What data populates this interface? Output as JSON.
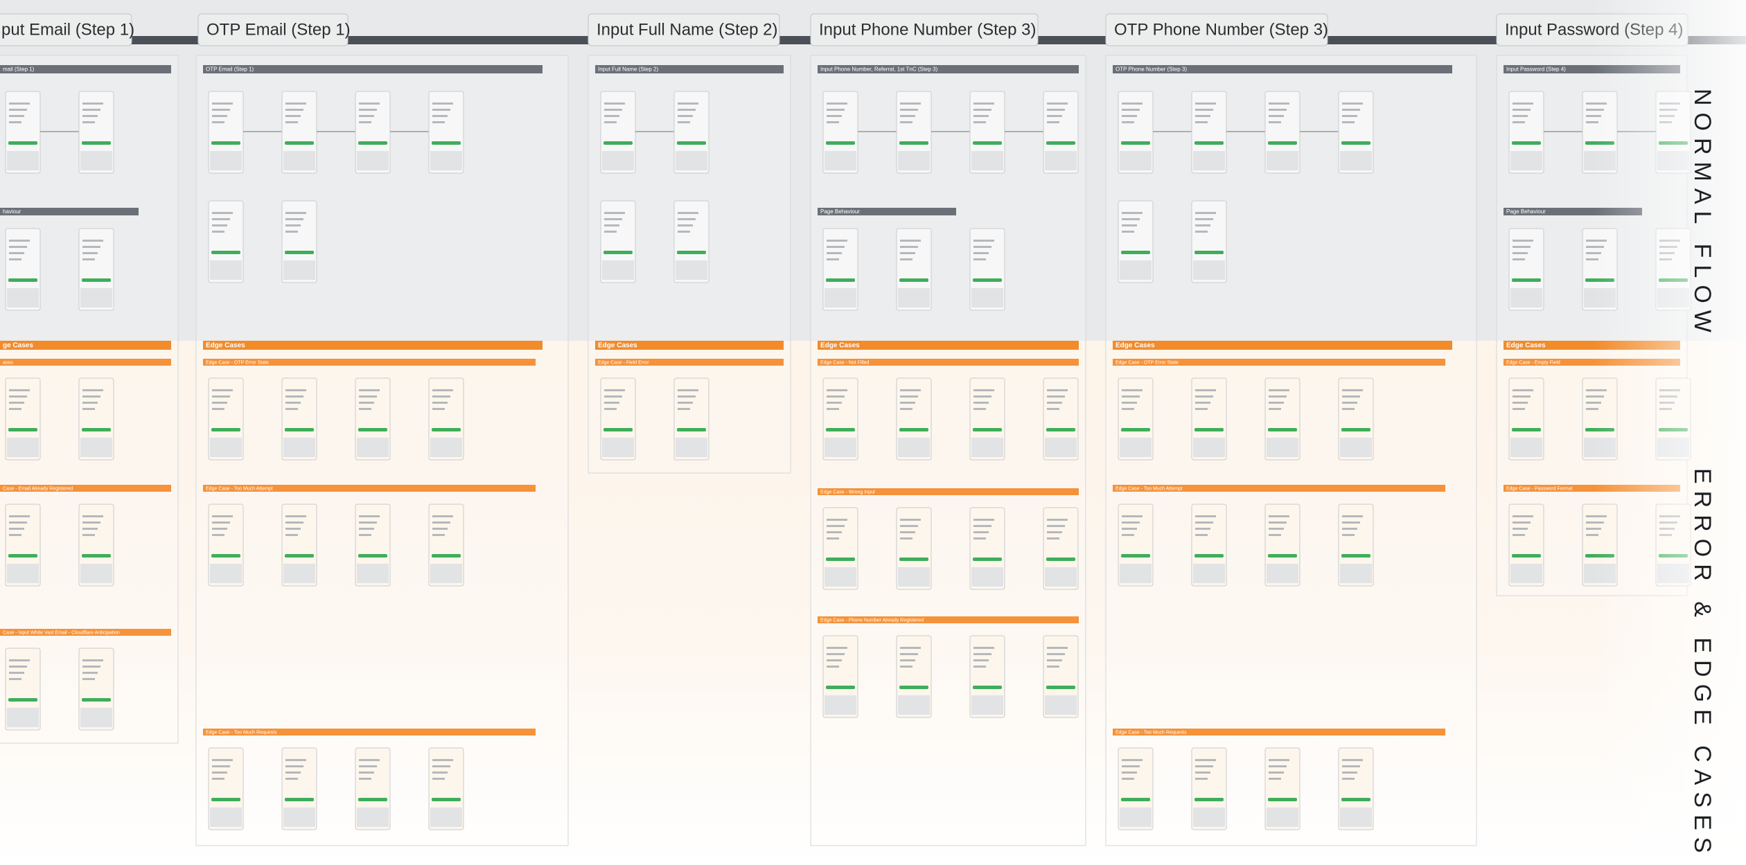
{
  "columns": [
    {
      "title": "put Email (Step 1)",
      "flow_title": "mail (Step 1)",
      "behaviour": "haviour",
      "edge_title": "ge Cases",
      "edge_sections": [
        "ases",
        "Case - Email Already Registered",
        "Case - Input White Vast Email - Cloudflare Anticipation"
      ]
    },
    {
      "title": "OTP Email (Step 1)",
      "flow_title": "OTP Email (Step 1)",
      "edge_title": "Edge Cases",
      "edge_sections": [
        "Edge Case - OTP Error State",
        "Edge Case - Too Much Attempt",
        "Edge Case - Too Much Requests"
      ]
    },
    {
      "title": "Input Full Name (Step 2)",
      "flow_title": "Input Full Name (Step 2)",
      "edge_title": "Edge Cases",
      "edge_sections": [
        "Edge Case - Field Error"
      ]
    },
    {
      "title": "Input Phone Number (Step 3)",
      "flow_title": "Input Phone Number, Referral, 1st TnC (Step 3)",
      "behaviour": "Page Behaviour",
      "edge_title": "Edge Cases",
      "edge_sections": [
        "Edge Case - Not Filled",
        "Edge Case - Wrong Input",
        "Edge Case - Phone Number Already Registered"
      ]
    },
    {
      "title": "OTP Phone Number (Step 3)",
      "flow_title": "OTP Phone Number (Step 3)",
      "edge_title": "Edge Cases",
      "edge_sections": [
        "Edge Case - OTP Error State",
        "Edge Case - Too Much Attempt",
        "Edge Case - Too Much Requests"
      ]
    },
    {
      "title": "Input Password (Step 4)",
      "flow_title": "Input Password (Step 4)",
      "behaviour": "Page Behaviour",
      "edge_title": "Edge Cases",
      "edge_sections": [
        "Edge Case - Empty Field",
        "Edge Case - Password Format"
      ]
    }
  ],
  "side_labels": {
    "normal": "NORMAL FLOW",
    "error": "ERROR & EDGE CASES"
  }
}
